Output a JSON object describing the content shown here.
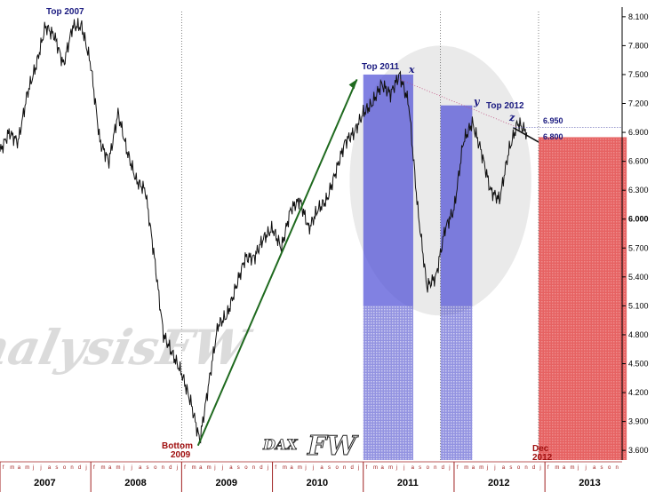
{
  "chart_data": {
    "type": "line",
    "title": "",
    "instrument": "DAX",
    "watermark": "AnalysisFW",
    "logo": "DAX by FW",
    "ylim": [
      3500,
      8200
    ],
    "y_ticks": [
      "8.100",
      "7.800",
      "7.500",
      "7.200",
      "6.900",
      "6.600",
      "6.300",
      "6.000",
      "5.700",
      "5.400",
      "5.100",
      "4.800",
      "4.500",
      "4.200",
      "3.900",
      "3.600"
    ],
    "y_tick_values": [
      8100,
      7800,
      7500,
      7200,
      6900,
      6600,
      6300,
      6000,
      5700,
      5400,
      5100,
      4800,
      4500,
      4200,
      3900,
      3600
    ],
    "highlight_tick": "6.000",
    "years": [
      "2007",
      "2008",
      "2009",
      "2010",
      "2011",
      "2012",
      "2013"
    ],
    "month_letters": "fmamjjasondj",
    "grid": false,
    "series": [
      {
        "x": [
          2007.0,
          2007.1,
          2007.2,
          2007.3,
          2007.4,
          2007.5,
          2007.6,
          2007.7,
          2007.8,
          2007.9,
          2008.0,
          2008.1,
          2008.2,
          2008.3,
          2008.4,
          2008.5,
          2008.6,
          2008.7,
          2008.8,
          2008.9,
          2009.0,
          2009.1,
          2009.2,
          2009.3,
          2009.4,
          2009.5,
          2009.6,
          2009.7,
          2009.8,
          2009.9,
          2010.0,
          2010.1,
          2010.2,
          2010.3,
          2010.4,
          2010.5,
          2010.6,
          2010.7,
          2010.8,
          2010.9,
          2011.0,
          2011.1,
          2011.2,
          2011.3,
          2011.4,
          2011.5,
          2011.6,
          2011.7,
          2011.8,
          2011.9,
          2012.0,
          2012.1,
          2012.2,
          2012.3,
          2012.4,
          2012.5,
          2012.6,
          2012.7,
          2012.8
        ],
        "values": [
          6700,
          6900,
          6800,
          7300,
          7600,
          8000,
          7900,
          7600,
          8000,
          8000,
          7600,
          6800,
          6600,
          7100,
          6700,
          6400,
          6300,
          5600,
          4800,
          4600,
          4400,
          4100,
          3700,
          4300,
          4900,
          5000,
          5300,
          5600,
          5600,
          5800,
          5900,
          5700,
          6100,
          6200,
          5900,
          6100,
          6200,
          6500,
          6800,
          6900,
          7100,
          7200,
          7400,
          7300,
          7500,
          7200,
          6100,
          5300,
          5400,
          5900,
          6100,
          6800,
          7000,
          6700,
          6300,
          6200,
          6700,
          7000,
          6900
        ]
      }
    ],
    "annotations": {
      "top_2007": "Top 2007",
      "top_2011": "Top 2011",
      "top_2012": "Top 2012",
      "bottom_2009": "Bottom\n2009",
      "dec_2012": "Dec\n2012",
      "wave_x": "x",
      "wave_y": "y",
      "wave_z": "z",
      "level_6950": "6.950",
      "level_6800": "6.800"
    },
    "levels": [
      6950,
      6800
    ],
    "trendline": {
      "from": [
        2009.18,
        3650
      ],
      "to": [
        2010.93,
        7450
      ]
    },
    "projection_line": {
      "from": [
        2012.65,
        6950
      ],
      "to": [
        2012.93,
        6800
      ]
    },
    "resistance_line": {
      "from": [
        2011.4,
        7450
      ],
      "to": [
        2012.7,
        6950
      ]
    },
    "shaded_blocks": [
      {
        "from": 2011.0,
        "to": 2011.55,
        "top": 7500,
        "color": "#4b4bd6"
      },
      {
        "from": 2011.85,
        "to": 2012.2,
        "top": 7180,
        "color": "#4b4bd6"
      },
      {
        "from": 2012.93,
        "to": 2013.9,
        "top": 6850,
        "color": "#e05050"
      }
    ],
    "vertical_markers": [
      2009.0,
      2011.85,
      2012.93
    ],
    "ellipse": {
      "cx": 2011.85,
      "cy": 6400,
      "rx": 1.0,
      "ry": 1400
    }
  }
}
